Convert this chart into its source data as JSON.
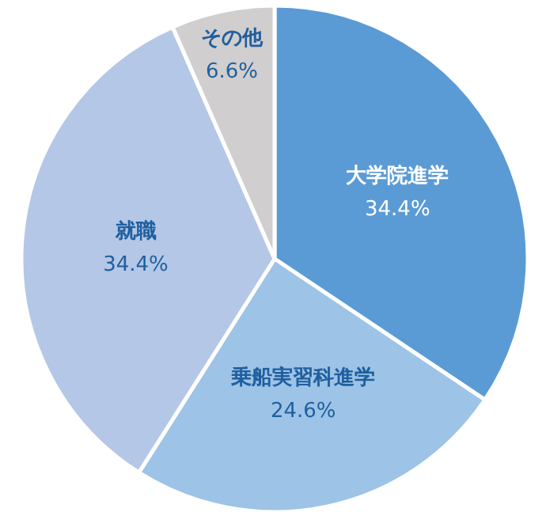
{
  "chart_data": {
    "type": "pie",
    "categories": [
      "大学院進学",
      "乗船実習科進学",
      "就職",
      "その他"
    ],
    "values": [
      34.4,
      24.6,
      34.4,
      6.6
    ],
    "value_labels": [
      "34.4%",
      "24.6%",
      "34.4%",
      "6.6%"
    ],
    "colors": [
      "#5b9bd5",
      "#9dc3e6",
      "#b4c7e7",
      "#d0cece"
    ]
  }
}
